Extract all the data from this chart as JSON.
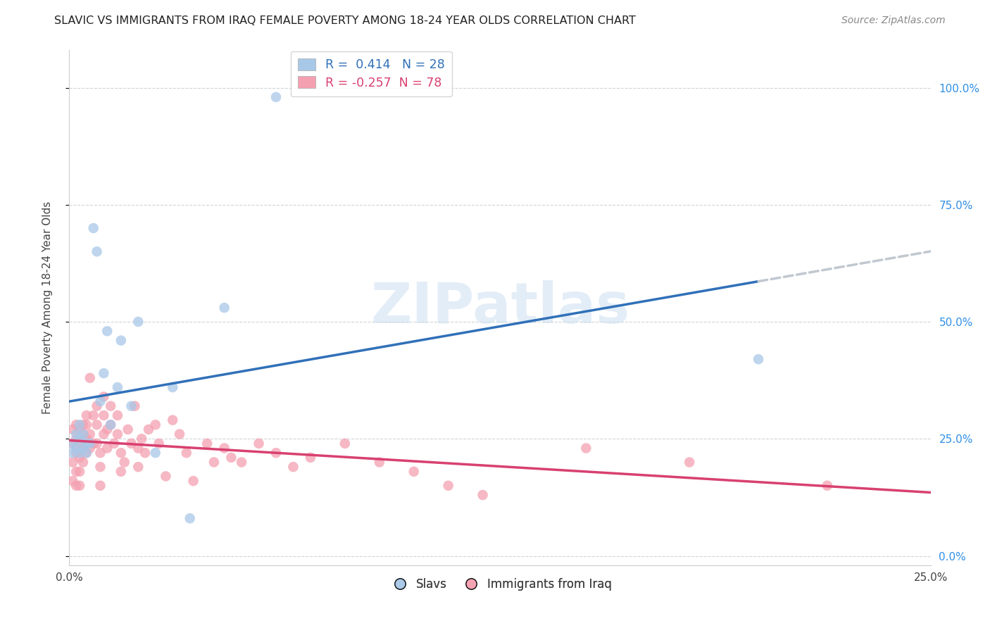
{
  "title": "SLAVIC VS IMMIGRANTS FROM IRAQ FEMALE POVERTY AMONG 18-24 YEAR OLDS CORRELATION CHART",
  "source": "Source: ZipAtlas.com",
  "ylabel_label": "Female Poverty Among 18-24 Year Olds",
  "legend_label_slavs": "Slavs",
  "legend_label_iraq": "Immigrants from Iraq",
  "R_slavs": 0.414,
  "N_slavs": 28,
  "R_iraq": -0.257,
  "N_iraq": 78,
  "slavs_color": "#a8c8e8",
  "iraq_color": "#f4a0b0",
  "trend_slavs_color": "#3070b8",
  "trend_iraq_color": "#d84070",
  "trend_ext_color": "#c0c8d0",
  "watermark": "ZIPatlas",
  "xmin": 0.0,
  "xmax": 0.25,
  "ymin": -0.02,
  "ymax": 1.08,
  "slavs_x": [
    0.001,
    0.001,
    0.002,
    0.002,
    0.003,
    0.003,
    0.003,
    0.004,
    0.004,
    0.005,
    0.005,
    0.006,
    0.007,
    0.008,
    0.009,
    0.01,
    0.011,
    0.012,
    0.014,
    0.015,
    0.018,
    0.02,
    0.025,
    0.03,
    0.035,
    0.045,
    0.06,
    0.2
  ],
  "slavs_y": [
    0.24,
    0.22,
    0.23,
    0.26,
    0.22,
    0.25,
    0.28,
    0.23,
    0.26,
    0.22,
    0.24,
    0.24,
    0.7,
    0.65,
    0.33,
    0.39,
    0.48,
    0.28,
    0.36,
    0.46,
    0.32,
    0.5,
    0.22,
    0.36,
    0.08,
    0.53,
    0.98,
    0.42
  ],
  "iraq_x": [
    0.001,
    0.001,
    0.001,
    0.001,
    0.002,
    0.002,
    0.002,
    0.002,
    0.002,
    0.003,
    0.003,
    0.003,
    0.003,
    0.003,
    0.004,
    0.004,
    0.004,
    0.004,
    0.005,
    0.005,
    0.005,
    0.005,
    0.006,
    0.006,
    0.006,
    0.007,
    0.007,
    0.008,
    0.008,
    0.008,
    0.009,
    0.009,
    0.009,
    0.01,
    0.01,
    0.01,
    0.011,
    0.011,
    0.012,
    0.012,
    0.013,
    0.014,
    0.014,
    0.015,
    0.015,
    0.016,
    0.017,
    0.018,
    0.019,
    0.02,
    0.02,
    0.021,
    0.022,
    0.023,
    0.025,
    0.026,
    0.028,
    0.03,
    0.032,
    0.034,
    0.036,
    0.04,
    0.042,
    0.045,
    0.047,
    0.05,
    0.055,
    0.06,
    0.065,
    0.07,
    0.08,
    0.09,
    0.1,
    0.11,
    0.12,
    0.15,
    0.18,
    0.22
  ],
  "iraq_y": [
    0.27,
    0.24,
    0.2,
    0.16,
    0.28,
    0.25,
    0.22,
    0.18,
    0.15,
    0.27,
    0.24,
    0.21,
    0.18,
    0.15,
    0.28,
    0.26,
    0.23,
    0.2,
    0.3,
    0.28,
    0.25,
    0.22,
    0.38,
    0.26,
    0.23,
    0.3,
    0.24,
    0.32,
    0.28,
    0.24,
    0.22,
    0.19,
    0.15,
    0.34,
    0.3,
    0.26,
    0.27,
    0.23,
    0.32,
    0.28,
    0.24,
    0.3,
    0.26,
    0.22,
    0.18,
    0.2,
    0.27,
    0.24,
    0.32,
    0.23,
    0.19,
    0.25,
    0.22,
    0.27,
    0.28,
    0.24,
    0.17,
    0.29,
    0.26,
    0.22,
    0.16,
    0.24,
    0.2,
    0.23,
    0.21,
    0.2,
    0.24,
    0.22,
    0.19,
    0.21,
    0.24,
    0.2,
    0.18,
    0.15,
    0.13,
    0.23,
    0.2,
    0.15
  ]
}
